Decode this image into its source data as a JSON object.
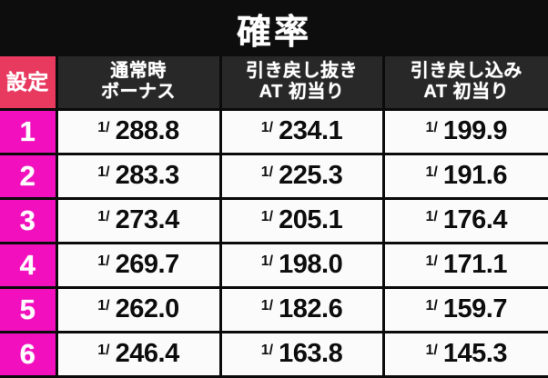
{
  "title": "確率",
  "colors": {
    "title_bg": "#0d0d0d",
    "header_bg": "#282828",
    "setting_header_bg": "#e8395f",
    "setting_cell_bg": "#f10fbe",
    "value_cell_bg": "#fbfbfb",
    "border": "#0b0b0b",
    "header_text": "#ffffff",
    "value_text": "#0d0d0d"
  },
  "table": {
    "fraction_prefix": "1/",
    "headers": {
      "setting": "設定",
      "col1": {
        "line1": "通常時",
        "line2": "ボーナス"
      },
      "col2": {
        "line1": "引き戻し抜き",
        "line2": "AT 初当り"
      },
      "col3": {
        "line1": "引き戻し込み",
        "line2": "AT 初当り"
      }
    },
    "rows": [
      {
        "setting": "1",
        "values": [
          "288.8",
          "234.1",
          "199.9"
        ]
      },
      {
        "setting": "2",
        "values": [
          "283.3",
          "225.3",
          "191.6"
        ]
      },
      {
        "setting": "3",
        "values": [
          "273.4",
          "205.1",
          "176.4"
        ]
      },
      {
        "setting": "4",
        "values": [
          "269.7",
          "198.0",
          "171.1"
        ]
      },
      {
        "setting": "5",
        "values": [
          "262.0",
          "182.6",
          "159.7"
        ]
      },
      {
        "setting": "6",
        "values": [
          "246.4",
          "163.8",
          "145.3"
        ]
      }
    ]
  },
  "chart_data": {
    "type": "table",
    "title": "確率",
    "columns": [
      "設定",
      "通常時ボーナス",
      "引き戻し抜き AT 初当り",
      "引き戻し込み AT 初当り"
    ],
    "rows": [
      [
        "1",
        "1/288.8",
        "1/234.1",
        "1/199.9"
      ],
      [
        "2",
        "1/283.3",
        "1/225.3",
        "1/191.6"
      ],
      [
        "3",
        "1/273.4",
        "1/205.1",
        "1/176.4"
      ],
      [
        "4",
        "1/269.7",
        "1/198.0",
        "1/171.1"
      ],
      [
        "5",
        "1/262.0",
        "1/182.6",
        "1/159.7"
      ],
      [
        "6",
        "1/246.4",
        "1/163.8",
        "1/145.3"
      ]
    ]
  }
}
